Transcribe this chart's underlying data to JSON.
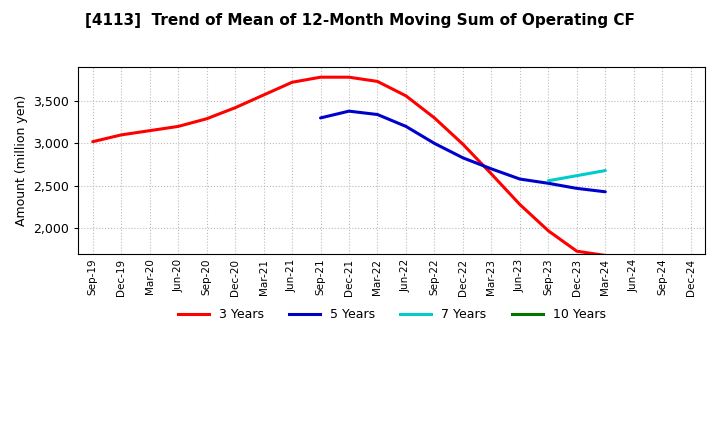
{
  "title": "[4113]  Trend of Mean of 12-Month Moving Sum of Operating CF",
  "ylabel": "Amount (million yen)",
  "background_color": "#ffffff",
  "plot_bg_color": "#ffffff",
  "grid_color": "#aaaaaa",
  "x_labels": [
    "Sep-19",
    "Dec-19",
    "Mar-20",
    "Jun-20",
    "Sep-20",
    "Dec-20",
    "Mar-21",
    "Jun-21",
    "Sep-21",
    "Dec-21",
    "Mar-22",
    "Jun-22",
    "Sep-22",
    "Dec-22",
    "Mar-23",
    "Jun-23",
    "Sep-23",
    "Dec-23",
    "Mar-24",
    "Jun-24",
    "Sep-24",
    "Dec-24"
  ],
  "ylim": [
    1700,
    3900
  ],
  "yticks": [
    2000,
    2500,
    3000,
    3500
  ],
  "series": {
    "3yr": {
      "color": "#ff0000",
      "label": "3 Years",
      "x": [
        0,
        1,
        2,
        3,
        4,
        5,
        6,
        7,
        8,
        9,
        10,
        11,
        12,
        13,
        14,
        15,
        16,
        17,
        18
      ],
      "y": [
        3020,
        3100,
        3150,
        3200,
        3290,
        3420,
        3570,
        3720,
        3780,
        3780,
        3730,
        3560,
        3300,
        2990,
        2640,
        2280,
        1970,
        1730,
        1680
      ]
    },
    "5yr": {
      "color": "#0000cc",
      "label": "5 Years",
      "x": [
        8,
        9,
        10,
        11,
        12,
        13,
        14,
        15,
        16,
        17,
        18
      ],
      "y": [
        3300,
        3380,
        3340,
        3200,
        3000,
        2830,
        2700,
        2580,
        2530,
        2470,
        2430
      ]
    },
    "7yr": {
      "color": "#00cccc",
      "label": "7 Years",
      "x": [
        16,
        17,
        18
      ],
      "y": [
        2560,
        2620,
        2680
      ]
    },
    "10yr": {
      "color": "#007700",
      "label": "10 Years",
      "x": [],
      "y": []
    }
  }
}
